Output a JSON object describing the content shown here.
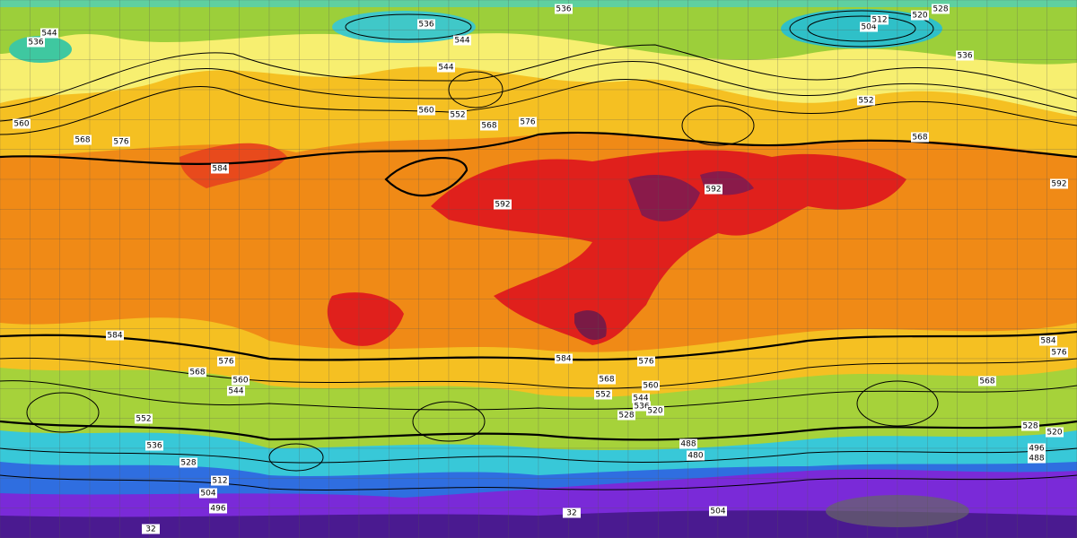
{
  "contour_labels": [
    "536",
    "536",
    "544",
    "536",
    "544",
    "520",
    "528",
    "504",
    "512",
    "536",
    "544",
    "552",
    "560",
    "568",
    "576",
    "584",
    "560",
    "552",
    "568",
    "576",
    "568",
    "592",
    "592",
    "592",
    "584",
    "576",
    "568",
    "560",
    "544",
    "552",
    "536",
    "528",
    "512",
    "504",
    "496",
    "584",
    "576",
    "568",
    "560",
    "552",
    "544",
    "536",
    "528",
    "520",
    "488",
    "480",
    "504",
    "584",
    "576",
    "568",
    "528",
    "520",
    "496",
    "488",
    "32",
    "32"
  ]
}
